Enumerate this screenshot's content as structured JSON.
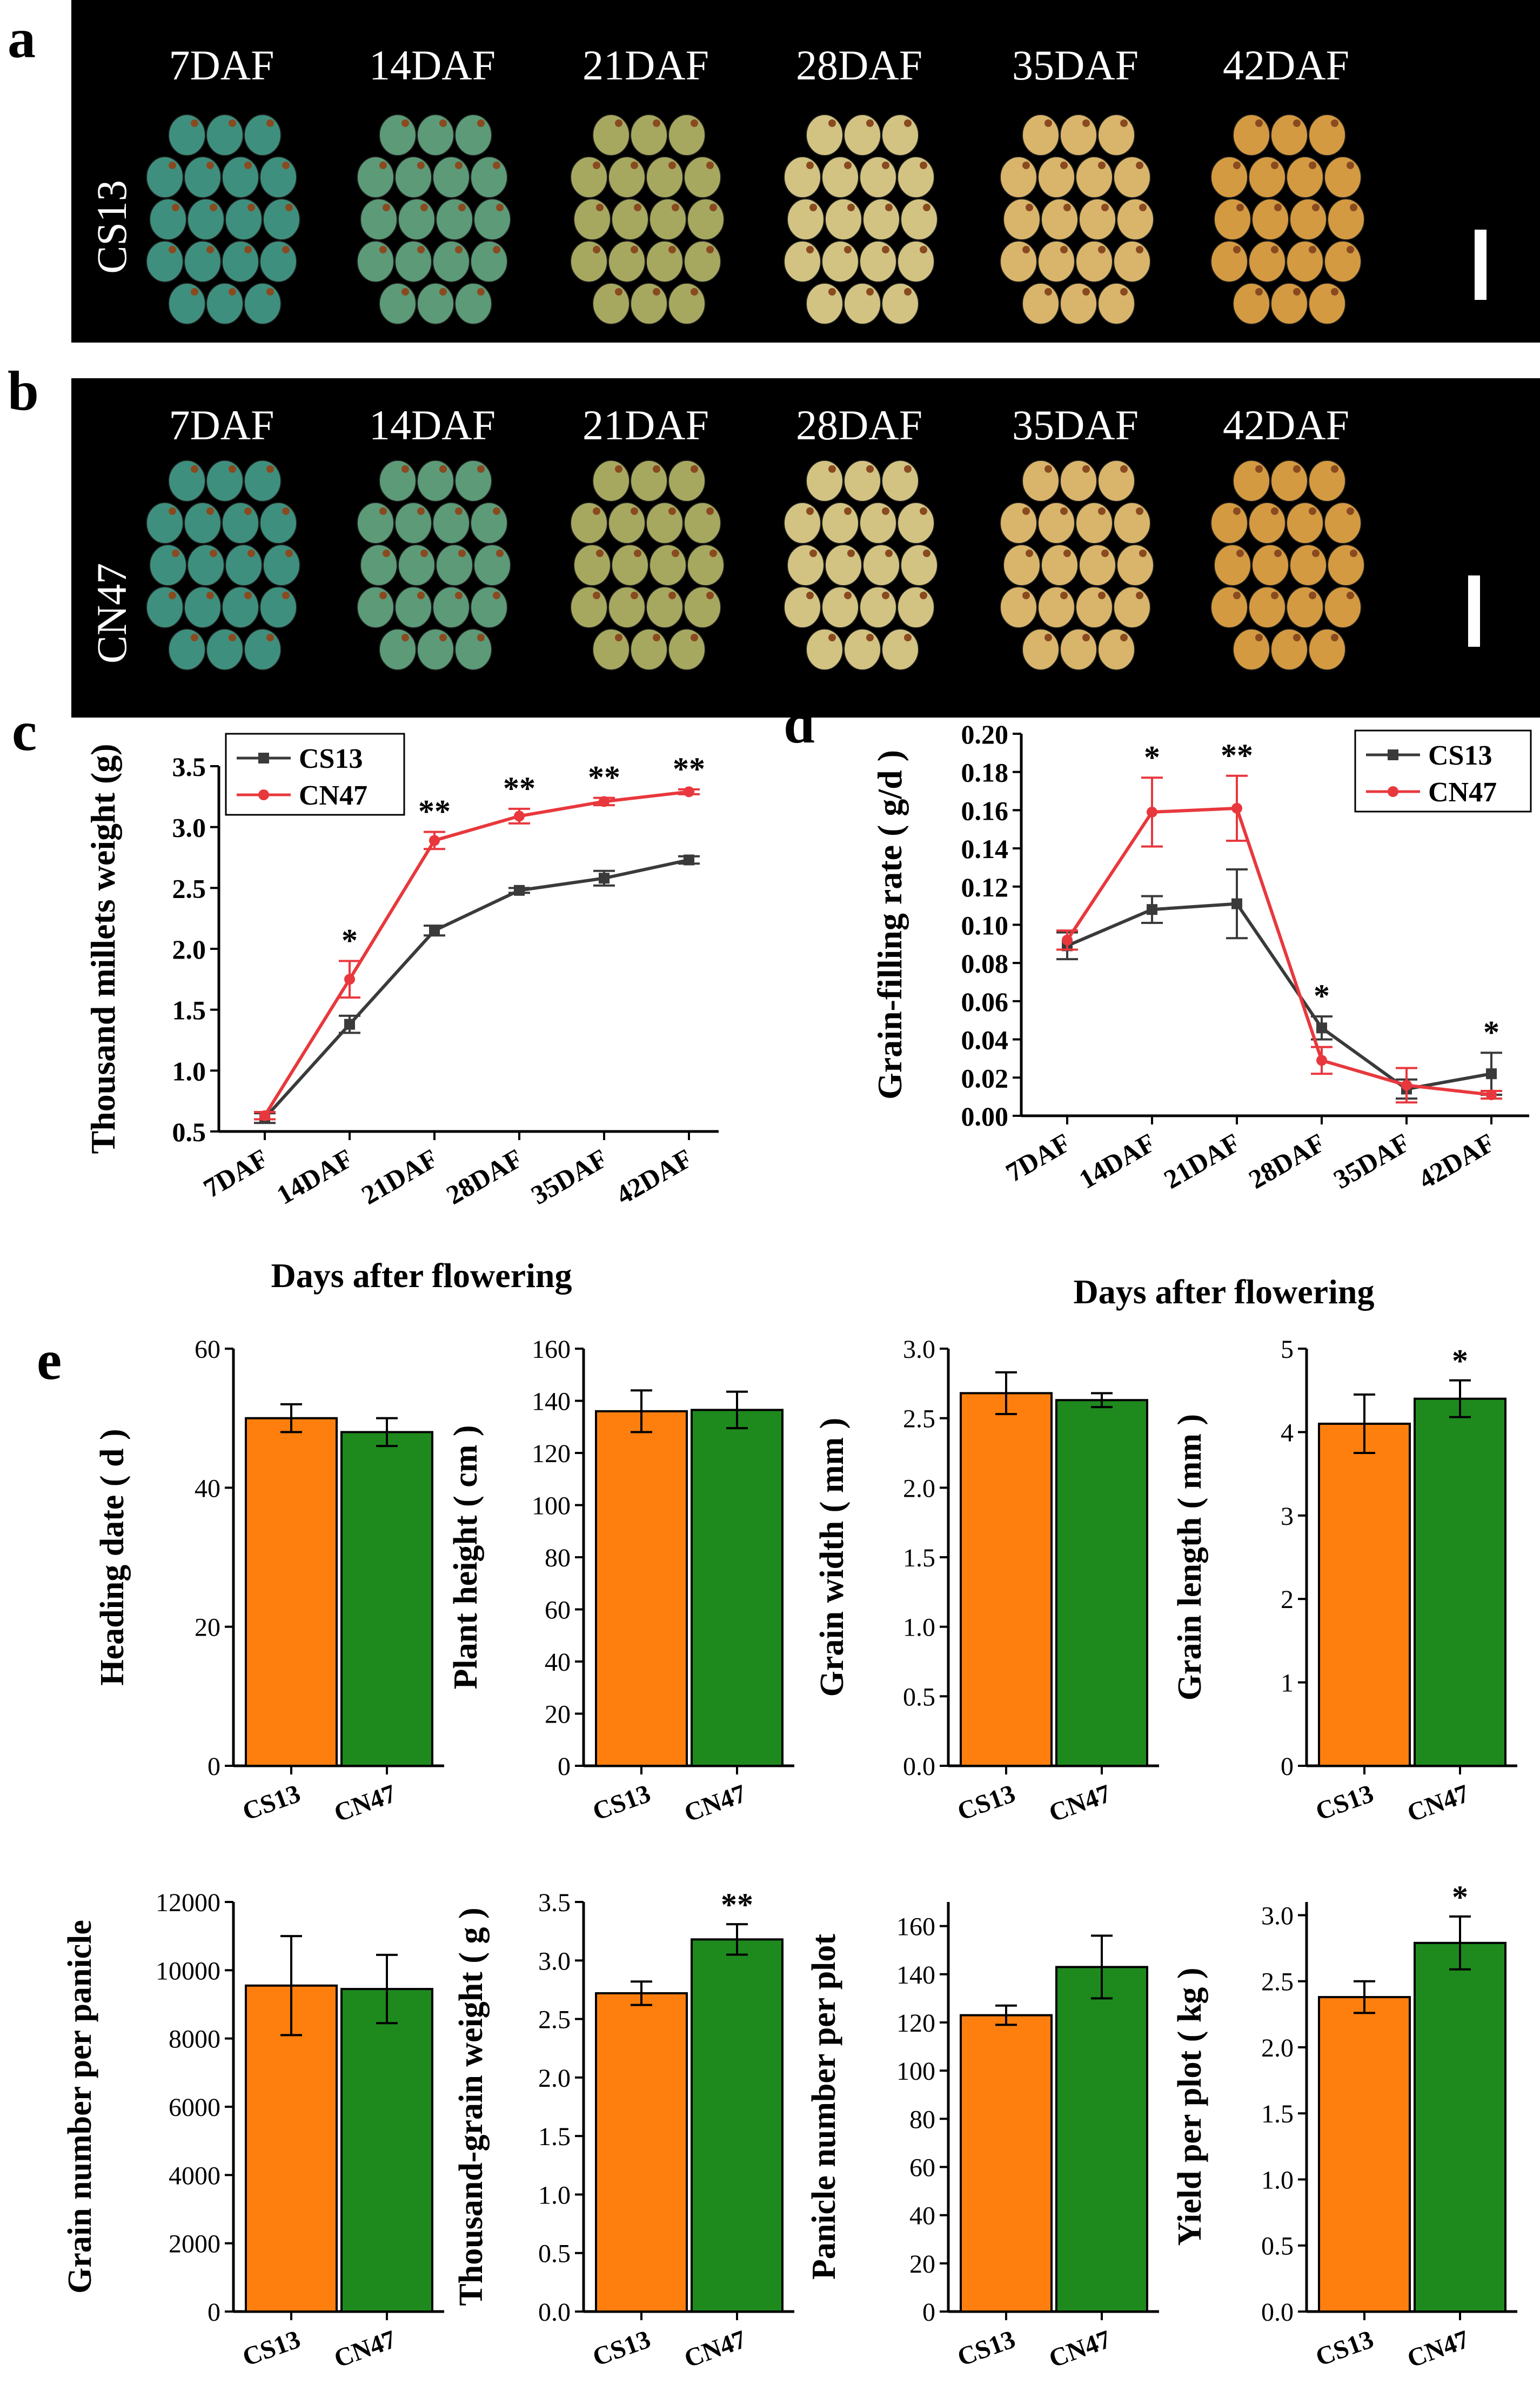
{
  "panel_letters": {
    "a": "a",
    "b": "b",
    "c": "c",
    "d": "d",
    "e": "e"
  },
  "photos": {
    "days": [
      "7DAF",
      "14DAF",
      "21DAF",
      "28DAF",
      "35DAF",
      "42DAF"
    ],
    "rows": [
      {
        "letter": "a",
        "genotype": "CS13"
      },
      {
        "letter": "b",
        "genotype": "CN47"
      }
    ],
    "grain_colors": [
      "#3f8f7e",
      "#5c9a78",
      "#a7a860",
      "#d2c383",
      "#d9b56b",
      "#d49a42"
    ]
  },
  "chart_data": [
    {
      "id": "c",
      "type": "line",
      "categories": [
        "7DAF",
        "14DAF",
        "21DAF",
        "28DAF",
        "35DAF",
        "42DAF"
      ],
      "series": [
        {
          "name": "CS13",
          "color": "#3a3a3a",
          "values": [
            0.61,
            1.38,
            2.15,
            2.48,
            2.58,
            2.73
          ],
          "errors": [
            0.04,
            0.07,
            0.04,
            0.02,
            0.06,
            0.03
          ]
        },
        {
          "name": "CN47",
          "color": "#e8383d",
          "values": [
            0.63,
            1.75,
            2.89,
            3.09,
            3.21,
            3.29
          ],
          "errors": [
            0.03,
            0.15,
            0.07,
            0.06,
            0.03,
            0.02
          ]
        }
      ],
      "significance": [
        "",
        "*",
        "**",
        "**",
        "**",
        "**"
      ],
      "xlabel": "Days after flowering",
      "ylabel": "Thousand millets weight (g)",
      "ylim": [
        0.5,
        3.5
      ],
      "yticks": [
        "0.5",
        "1.0",
        "1.5",
        "2.0",
        "2.5",
        "3.0",
        "3.5"
      ],
      "legend": "top-left"
    },
    {
      "id": "d",
      "type": "line",
      "categories": [
        "7DAF",
        "14DAF",
        "21DAF",
        "28DAF",
        "35DAF",
        "42DAF"
      ],
      "series": [
        {
          "name": "CS13",
          "color": "#3a3a3a",
          "values": [
            0.089,
            0.108,
            0.111,
            0.046,
            0.014,
            0.022
          ],
          "errors": [
            0.007,
            0.007,
            0.018,
            0.006,
            0.005,
            0.011
          ]
        },
        {
          "name": "CN47",
          "color": "#e8383d",
          "values": [
            0.092,
            0.159,
            0.161,
            0.029,
            0.016,
            0.011
          ],
          "errors": [
            0.005,
            0.018,
            0.017,
            0.007,
            0.009,
            0.002
          ]
        }
      ],
      "significance": [
        "",
        "*",
        "**",
        "*",
        "",
        "*"
      ],
      "xlabel": "Days after flowering",
      "ylabel": "Grain-filling rate ( g/d )",
      "ylim": [
        0.0,
        0.2
      ],
      "yticks": [
        "0.00",
        "0.02",
        "0.04",
        "0.06",
        "0.08",
        "0.10",
        "0.12",
        "0.14",
        "0.16",
        "0.18",
        "0.20"
      ],
      "legend": "top-right"
    },
    {
      "id": "e1",
      "type": "bar",
      "categories": [
        "CS13",
        "CN47"
      ],
      "values": [
        50,
        48
      ],
      "errors": [
        2,
        2
      ],
      "significance": [
        "",
        ""
      ],
      "colors": [
        "#ff7f0e",
        "#1e8a1e"
      ],
      "ylabel": "Heading date ( d )",
      "ylim": [
        0,
        60
      ],
      "yticks": [
        "0",
        "20",
        "40",
        "60"
      ]
    },
    {
      "id": "e2",
      "type": "bar",
      "categories": [
        "CS13",
        "CN47"
      ],
      "values": [
        136,
        136.5
      ],
      "errors": [
        8,
        7
      ],
      "significance": [
        "",
        ""
      ],
      "colors": [
        "#ff7f0e",
        "#1e8a1e"
      ],
      "ylabel": "Plant height ( cm )",
      "ylim": [
        0,
        160
      ],
      "yticks": [
        "0",
        "20",
        "40",
        "60",
        "80",
        "100",
        "120",
        "140",
        "160"
      ]
    },
    {
      "id": "e3",
      "type": "bar",
      "categories": [
        "CS13",
        "CN47"
      ],
      "values": [
        2.68,
        2.63
      ],
      "errors": [
        0.15,
        0.05
      ],
      "significance": [
        "",
        ""
      ],
      "colors": [
        "#ff7f0e",
        "#1e8a1e"
      ],
      "ylabel": "Grain width ( mm )",
      "ylim": [
        0,
        3
      ],
      "yticks": [
        "0.0",
        "0.5",
        "1.0",
        "1.5",
        "2.0",
        "2.5",
        "3.0"
      ]
    },
    {
      "id": "e4",
      "type": "bar",
      "categories": [
        "CS13",
        "CN47"
      ],
      "values": [
        4.1,
        4.4
      ],
      "errors": [
        0.35,
        0.22
      ],
      "significance": [
        "",
        "*"
      ],
      "colors": [
        "#ff7f0e",
        "#1e8a1e"
      ],
      "ylabel": "Grain length ( mm )",
      "ylim": [
        0,
        5
      ],
      "yticks": [
        "0",
        "1",
        "2",
        "3",
        "4",
        "5"
      ]
    },
    {
      "id": "e5",
      "type": "bar",
      "categories": [
        "CS13",
        "CN47"
      ],
      "values": [
        9550,
        9450
      ],
      "errors": [
        1450,
        1000
      ],
      "significance": [
        "",
        ""
      ],
      "colors": [
        "#ff7f0e",
        "#1e8a1e"
      ],
      "ylabel": "Grain number per panicle",
      "ylim": [
        0,
        12000
      ],
      "yticks": [
        "0",
        "2000",
        "4000",
        "6000",
        "8000",
        "10000",
        "12000"
      ]
    },
    {
      "id": "e6",
      "type": "bar",
      "categories": [
        "CS13",
        "CN47"
      ],
      "values": [
        2.72,
        3.18
      ],
      "errors": [
        0.1,
        0.13
      ],
      "significance": [
        "",
        "**"
      ],
      "colors": [
        "#ff7f0e",
        "#1e8a1e"
      ],
      "ylabel": "Thousand-grain weight ( g )",
      "ylim": [
        0,
        3.5
      ],
      "yticks": [
        "0.0",
        "0.5",
        "1.0",
        "1.5",
        "2.0",
        "2.5",
        "3.0",
        "3.5"
      ]
    },
    {
      "id": "e7",
      "type": "bar",
      "categories": [
        "CS13",
        "CN47"
      ],
      "values": [
        123,
        143
      ],
      "errors": [
        4,
        13
      ],
      "significance": [
        "",
        ""
      ],
      "colors": [
        "#ff7f0e",
        "#1e8a1e"
      ],
      "ylabel": "Panicle number per plot",
      "ylim": [
        0,
        170
      ],
      "yticks": [
        "0",
        "20",
        "40",
        "60",
        "80",
        "100",
        "120",
        "140",
        "160"
      ]
    },
    {
      "id": "e8",
      "type": "bar",
      "categories": [
        "CS13",
        "CN47"
      ],
      "values": [
        2.38,
        2.79
      ],
      "errors": [
        0.12,
        0.2
      ],
      "significance": [
        "",
        "*"
      ],
      "colors": [
        "#ff7f0e",
        "#1e8a1e"
      ],
      "ylabel": "Yield per plot ( kg )",
      "ylim": [
        0,
        3.1
      ],
      "yticks": [
        "0.0",
        "0.5",
        "1.0",
        "1.5",
        "2.0",
        "2.5",
        "3.0"
      ]
    }
  ]
}
